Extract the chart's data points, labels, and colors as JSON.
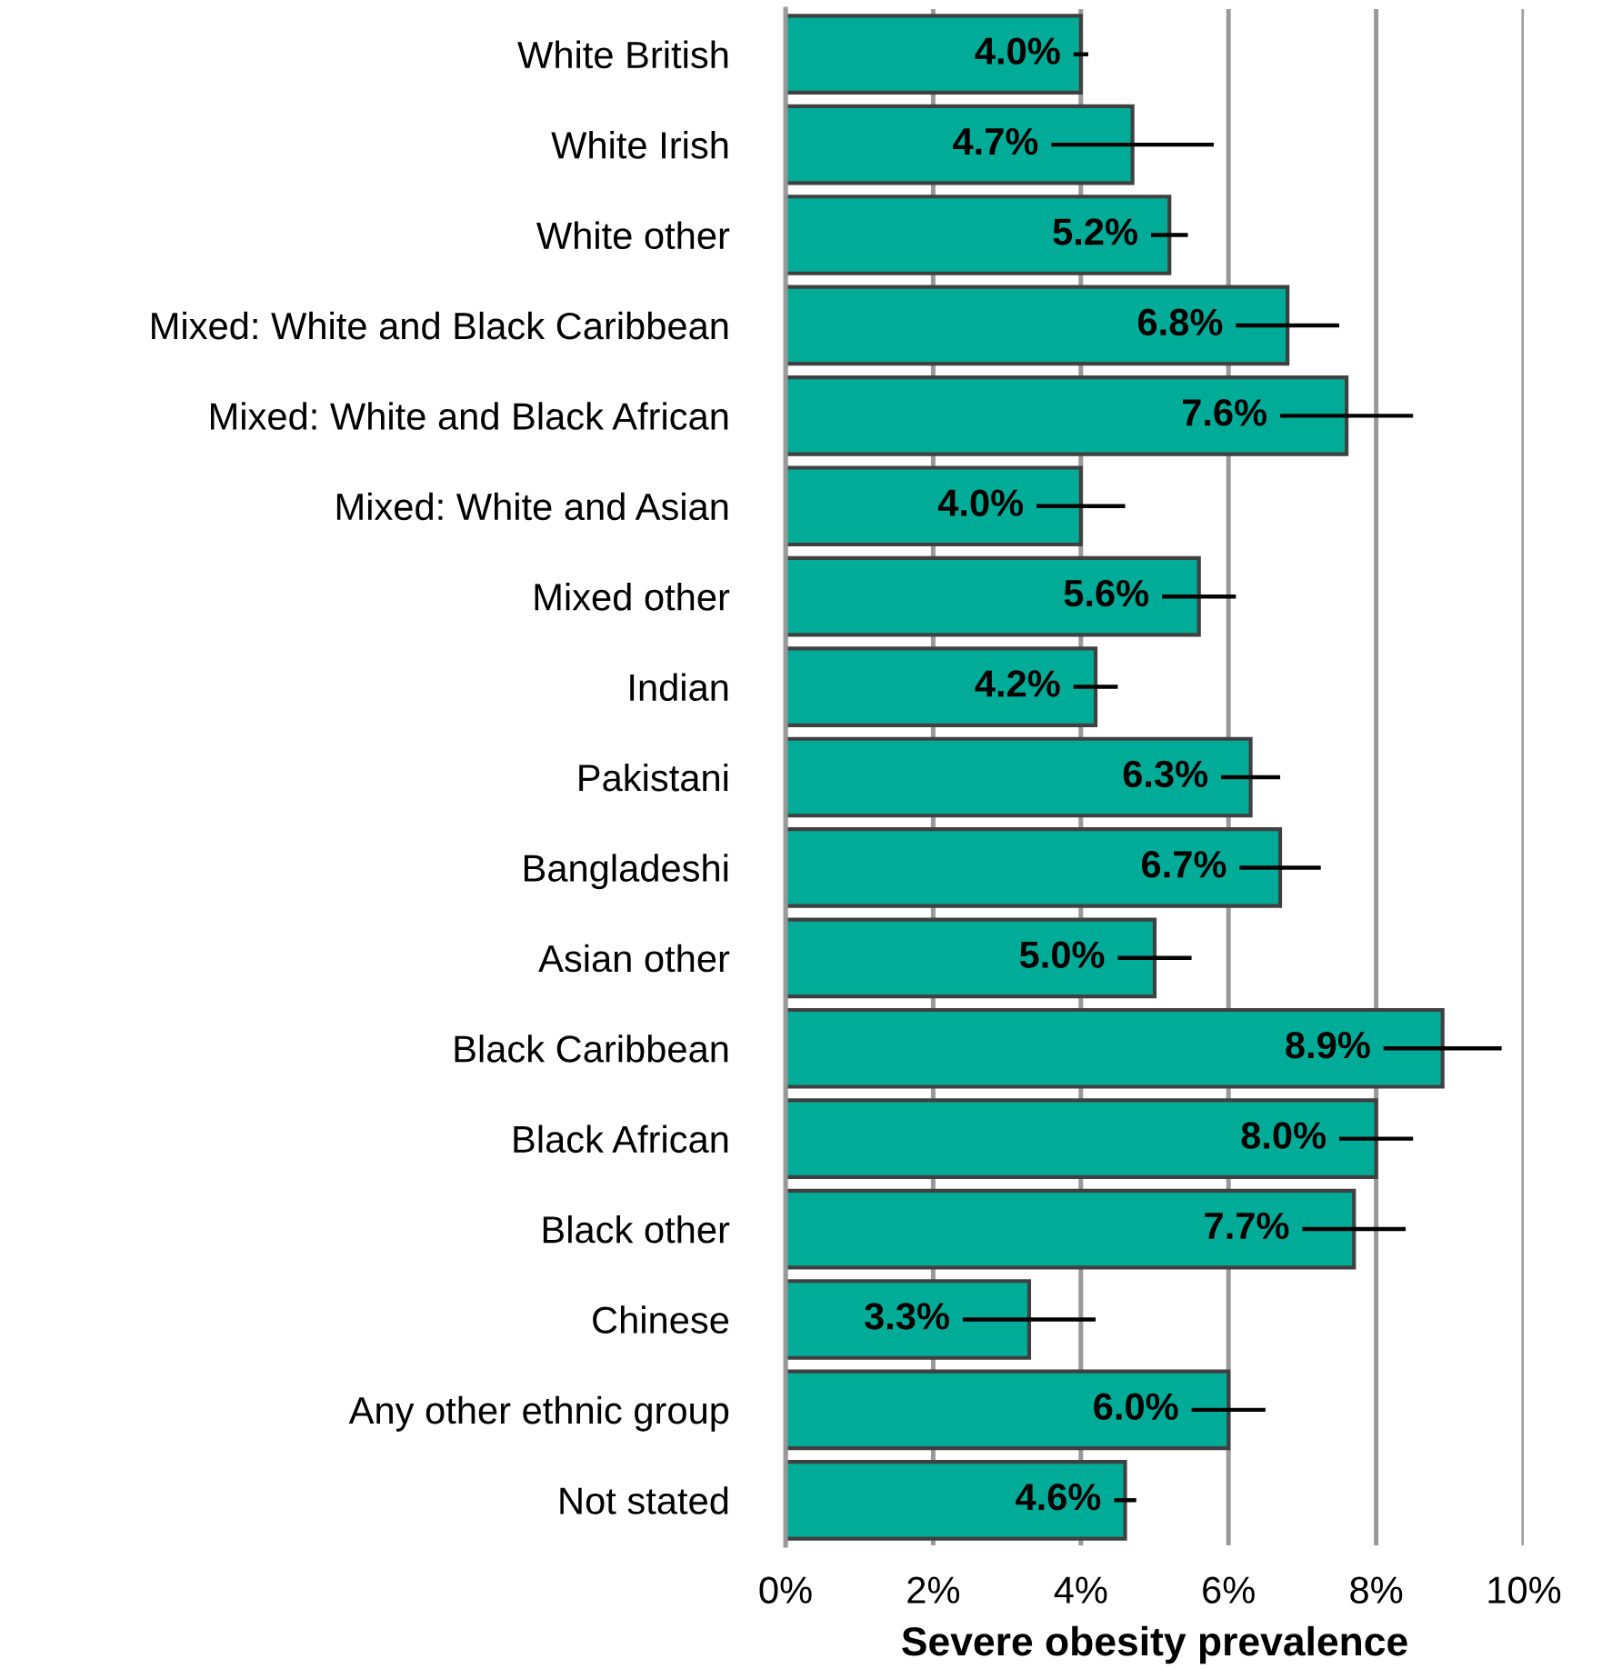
{
  "chart_data": {
    "type": "bar",
    "orientation": "horizontal",
    "xlabel": "Severe obesity prevalence",
    "categories": [
      "White British",
      "White Irish",
      "White other",
      "Mixed: White and Black Caribbean",
      "Mixed: White and Black African",
      "Mixed: White and Asian",
      "Mixed other",
      "Indian",
      "Pakistani",
      "Bangladeshi",
      "Asian other",
      "Black Caribbean",
      "Black African",
      "Black other",
      "Chinese",
      "Any other ethnic group",
      "Not stated"
    ],
    "values": [
      4.0,
      4.7,
      5.2,
      6.8,
      7.6,
      4.0,
      5.6,
      4.2,
      6.3,
      6.7,
      5.0,
      8.9,
      8.0,
      7.7,
      3.3,
      6.0,
      4.6
    ],
    "errors": [
      0.1,
      1.1,
      0.25,
      0.7,
      0.9,
      0.6,
      0.5,
      0.3,
      0.4,
      0.55,
      0.5,
      0.8,
      0.5,
      0.7,
      0.9,
      0.5,
      0.15
    ],
    "value_labels": [
      "4.0%",
      "4.7%",
      "5.2%",
      "6.8%",
      "7.6%",
      "4.0%",
      "5.6%",
      "4.2%",
      "6.3%",
      "6.7%",
      "5.0%",
      "8.9%",
      "8.0%",
      "7.7%",
      "3.3%",
      "6.0%",
      "4.6%"
    ],
    "color": "#00ac98",
    "xlim": [
      0,
      10
    ],
    "xticks": [
      {
        "value": 0,
        "label": "0%"
      },
      {
        "value": 2,
        "label": "2%"
      },
      {
        "value": 4,
        "label": "4%"
      },
      {
        "value": 6,
        "label": "6%"
      },
      {
        "value": 8,
        "label": "8%"
      },
      {
        "value": 10,
        "label": "10%"
      }
    ],
    "grid": "x",
    "legend": false
  }
}
